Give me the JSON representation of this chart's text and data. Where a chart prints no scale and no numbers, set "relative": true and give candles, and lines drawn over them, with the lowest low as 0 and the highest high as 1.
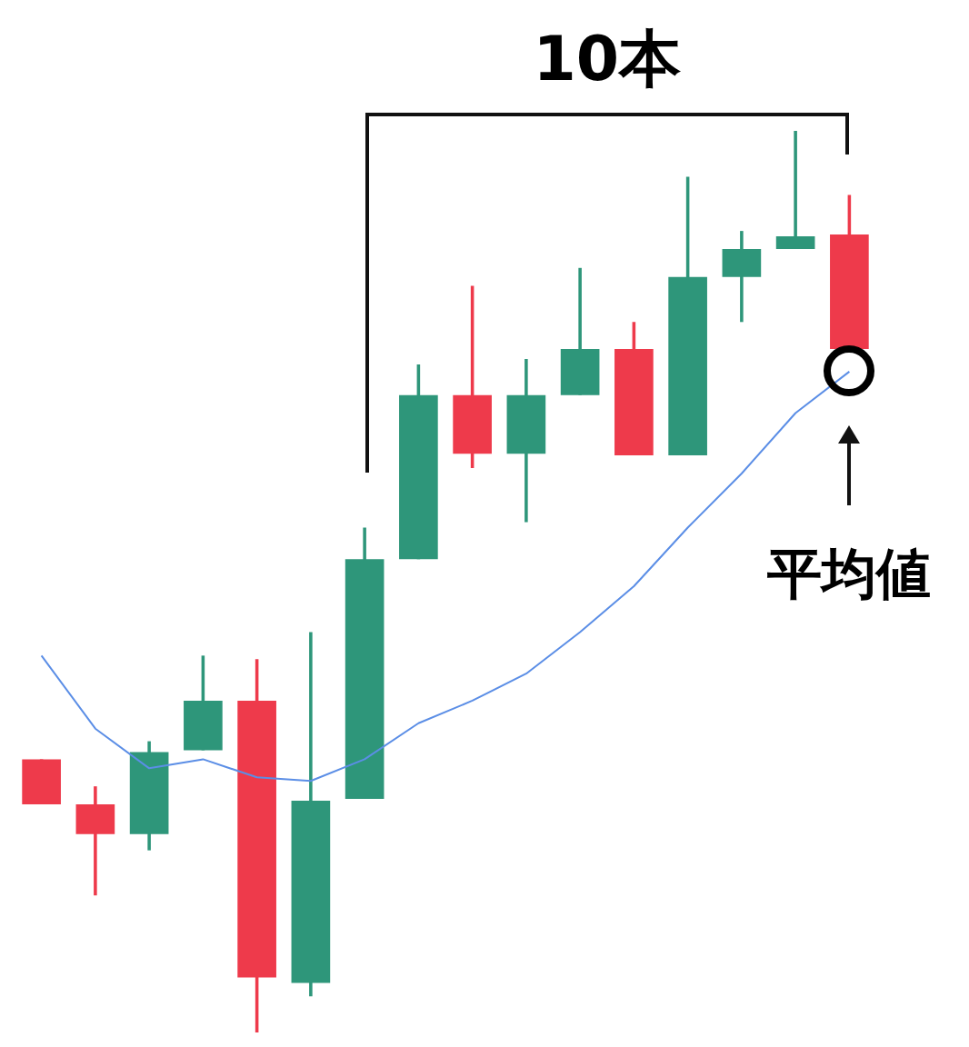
{
  "chart_data": {
    "type": "candlestick",
    "relative": true,
    "categories": [
      null,
      null,
      null,
      null,
      null,
      null,
      null,
      null,
      null,
      null,
      null,
      null,
      null,
      null,
      null,
      null
    ],
    "ohlc": [
      [
        0.303,
        0.303,
        0.253,
        0.253
      ],
      [
        0.253,
        0.273,
        0.152,
        0.22
      ],
      [
        0.22,
        0.323,
        0.202,
        0.311
      ],
      [
        0.313,
        0.418,
        0.313,
        0.368
      ],
      [
        0.368,
        0.414,
        0,
        0.061
      ],
      [
        0.055,
        0.444,
        0.04,
        0.257
      ],
      [
        0.259,
        0.56,
        0.259,
        0.525
      ],
      [
        0.525,
        0.741,
        0.525,
        0.707
      ],
      [
        0.707,
        0.828,
        0.626,
        0.642
      ],
      [
        0.642,
        0.747,
        0.566,
        0.707
      ],
      [
        0.707,
        0.848,
        0.707,
        0.758
      ],
      [
        0.758,
        0.788,
        0.64,
        0.64
      ],
      [
        0.64,
        0.949,
        0.64,
        0.838
      ],
      [
        0.838,
        0.889,
        0.788,
        0.869
      ],
      [
        0.869,
        1,
        0.869,
        0.883
      ],
      [
        0.885,
        0.929,
        0.758,
        0.758
      ]
    ],
    "colors": [
      "#ee3a4b",
      "#ee3a4b",
      "#2e967a",
      "#2e967a",
      "#ee3a4b",
      "#2e967a",
      "#2e967a",
      "#2e967a",
      "#ee3a4b",
      "#2e967a",
      "#2e967a",
      "#ee3a4b",
      "#2e967a",
      "#2e967a",
      "#2e967a",
      "#ee3a4b"
    ],
    "series": [
      {
        "type": "line",
        "color": "#5b8ee6",
        "values": [
          0.418,
          0.337,
          0.293,
          0.303,
          0.283,
          0.279,
          0.303,
          0.343,
          0.368,
          0.398,
          0.444,
          0.495,
          0.56,
          0.62,
          0.687,
          0.733
        ]
      }
    ],
    "annotations": [
      "10本",
      "平均値"
    ]
  }
}
